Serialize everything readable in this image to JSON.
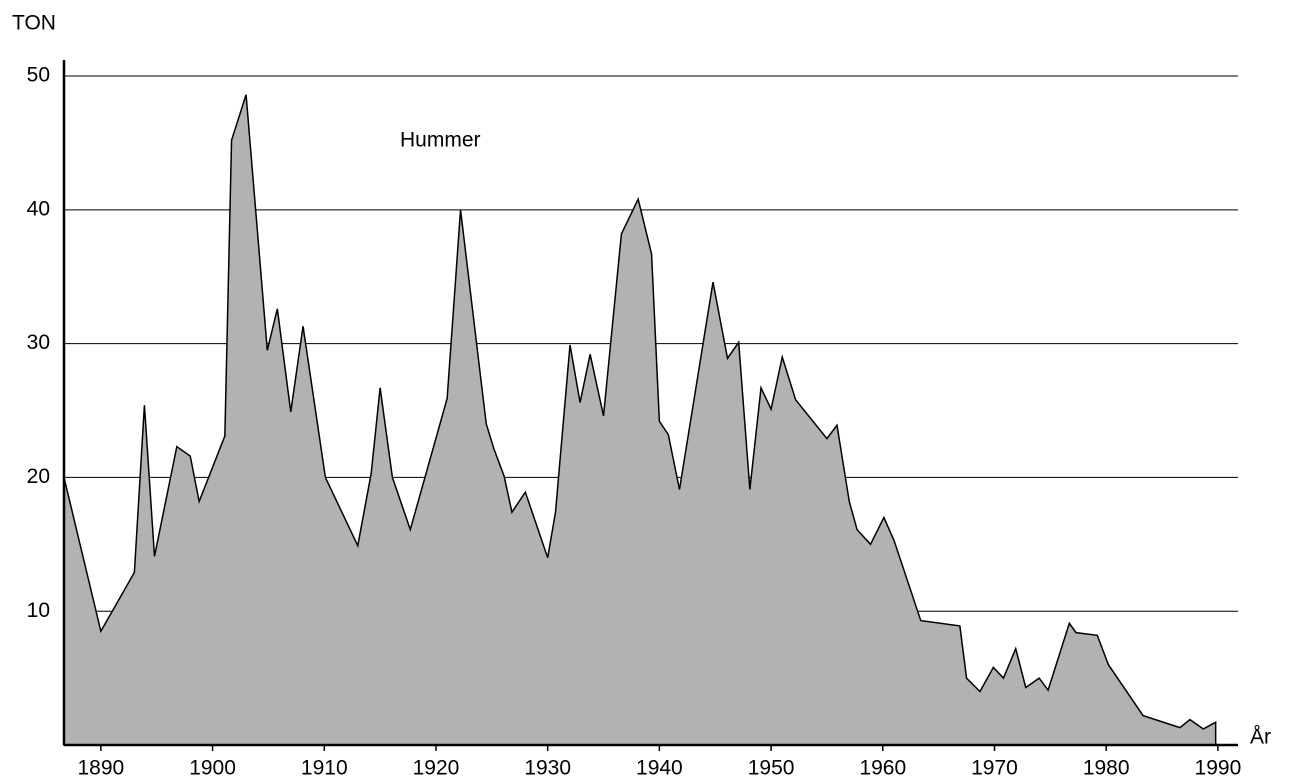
{
  "chart_data": {
    "type": "area",
    "y_label": "TON",
    "x_label": "År",
    "annotation": "Hummer",
    "color": "#b2b2b2",
    "x": [
      1886.7,
      1890.0,
      1893.0,
      1893.9,
      1894.8,
      1896.8,
      1898.0,
      1898.8,
      1901.1,
      1901.7,
      1903.0,
      1904.9,
      1905.8,
      1907.0,
      1908.1,
      1910.1,
      1913.0,
      1914.2,
      1915.0,
      1916.1,
      1917.7,
      1921.0,
      1922.2,
      1924.5,
      1925.2,
      1926.1,
      1926.8,
      1928.0,
      1930.0,
      1930.7,
      1932.0,
      1932.9,
      1933.8,
      1935.0,
      1936.6,
      1938.1,
      1939.3,
      1940.0,
      1940.8,
      1941.8,
      1944.8,
      1946.1,
      1947.1,
      1948.1,
      1949.1,
      1950.0,
      1951.0,
      1952.2,
      1955.0,
      1955.9,
      1957.0,
      1957.7,
      1958.9,
      1960.1,
      1961.0,
      1963.4,
      1966.9,
      1967.5,
      1968.7,
      1969.9,
      1970.8,
      1971.9,
      1972.8,
      1974.0,
      1974.8,
      1976.7,
      1977.3,
      1979.2,
      1980.2,
      1983.3,
      1986.6,
      1987.5,
      1988.7,
      1989.8
    ],
    "values": [
      20.0,
      8.5,
      12.9,
      25.4,
      14.1,
      22.3,
      21.6,
      18.2,
      23.1,
      45.2,
      48.6,
      29.5,
      32.6,
      24.9,
      31.3,
      20.0,
      14.9,
      20.3,
      26.7,
      20.0,
      16.1,
      25.9,
      40.0,
      24.0,
      22.1,
      20.1,
      17.4,
      18.9,
      14.0,
      17.4,
      29.9,
      25.6,
      29.2,
      24.6,
      38.2,
      40.8,
      36.7,
      24.2,
      23.2,
      19.1,
      34.6,
      28.9,
      30.1,
      19.1,
      26.7,
      25.1,
      29.0,
      25.8,
      22.9,
      23.9,
      18.2,
      16.1,
      15.0,
      17.0,
      15.3,
      9.3,
      8.9,
      5.0,
      4.0,
      5.8,
      5.0,
      7.2,
      4.3,
      5.0,
      4.1,
      9.1,
      8.4,
      8.2,
      6.0,
      2.2,
      1.3,
      1.9,
      1.2,
      1.7
    ],
    "xlim": [
      1886.7,
      1991.8
    ],
    "xticks": [
      1890,
      1900,
      1910,
      1920,
      1930,
      1940,
      1950,
      1960,
      1970,
      1980,
      1990
    ],
    "ylim": [
      0,
      51.2
    ],
    "yticks": [
      10,
      20,
      30,
      40,
      50
    ],
    "grid": true
  }
}
